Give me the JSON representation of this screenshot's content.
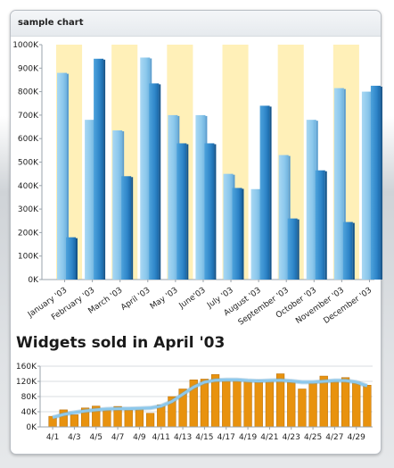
{
  "panel": {
    "title": "sample chart"
  },
  "chart_data": [
    {
      "type": "bar",
      "categories": [
        "January '03",
        "February '03",
        "March '03",
        "April '03",
        "May '03",
        "June'03",
        "July '03",
        "August '03",
        "September '03",
        "October '03",
        "November '03",
        "December '03"
      ],
      "series": [
        {
          "values": [
            880000,
            680000,
            635000,
            945000,
            700000,
            700000,
            450000,
            385000,
            530000,
            680000,
            815000,
            800000
          ]
        },
        {
          "values": [
            180000,
            940000,
            440000,
            835000,
            580000,
            580000,
            390000,
            740000,
            260000,
            465000,
            245000,
            825000
          ]
        }
      ],
      "y_ticks": [
        "0K",
        "100K",
        "200K",
        "300K",
        "400K",
        "500K",
        "600K",
        "700K",
        "800K",
        "900K",
        "1000K"
      ],
      "ylim": [
        0,
        1000000
      ],
      "alternating_band_color": "#fff0b8",
      "colors": {
        "series1": "#8cc8ec",
        "series2": "#2f86c9"
      },
      "grid": false
    },
    {
      "type": "bar",
      "title": "Widgets sold in April '03",
      "x_tick_labels": [
        "4/1",
        "4/3",
        "4/5",
        "4/7",
        "4/9",
        "4/11",
        "4/13",
        "4/15",
        "4/17",
        "4/19",
        "4/21",
        "4/23",
        "4/25",
        "4/27",
        "4/29"
      ],
      "y_ticks": [
        "0K",
        "40K",
        "80K",
        "120K",
        "160K"
      ],
      "ylim": [
        0,
        160000
      ],
      "values": [
        28000,
        45000,
        32000,
        50000,
        55000,
        45000,
        54000,
        50000,
        50000,
        36000,
        58000,
        80000,
        100000,
        124000,
        126000,
        138000,
        124000,
        126000,
        120000,
        124000,
        122000,
        140000,
        118000,
        100000,
        120000,
        134000,
        124000,
        130000,
        118000,
        110000
      ],
      "trend_values": [
        25000,
        33000,
        38000,
        42000,
        45000,
        47000,
        48000,
        48000,
        49000,
        50000,
        55000,
        67000,
        86000,
        105000,
        118000,
        123000,
        124000,
        124000,
        122000,
        121000,
        122000,
        123000,
        121000,
        118000,
        118000,
        120000,
        122000,
        122000,
        118000,
        108000
      ],
      "colors": {
        "bars": "#e8920e",
        "trend": "#8cc8ec"
      },
      "grid": true
    }
  ]
}
